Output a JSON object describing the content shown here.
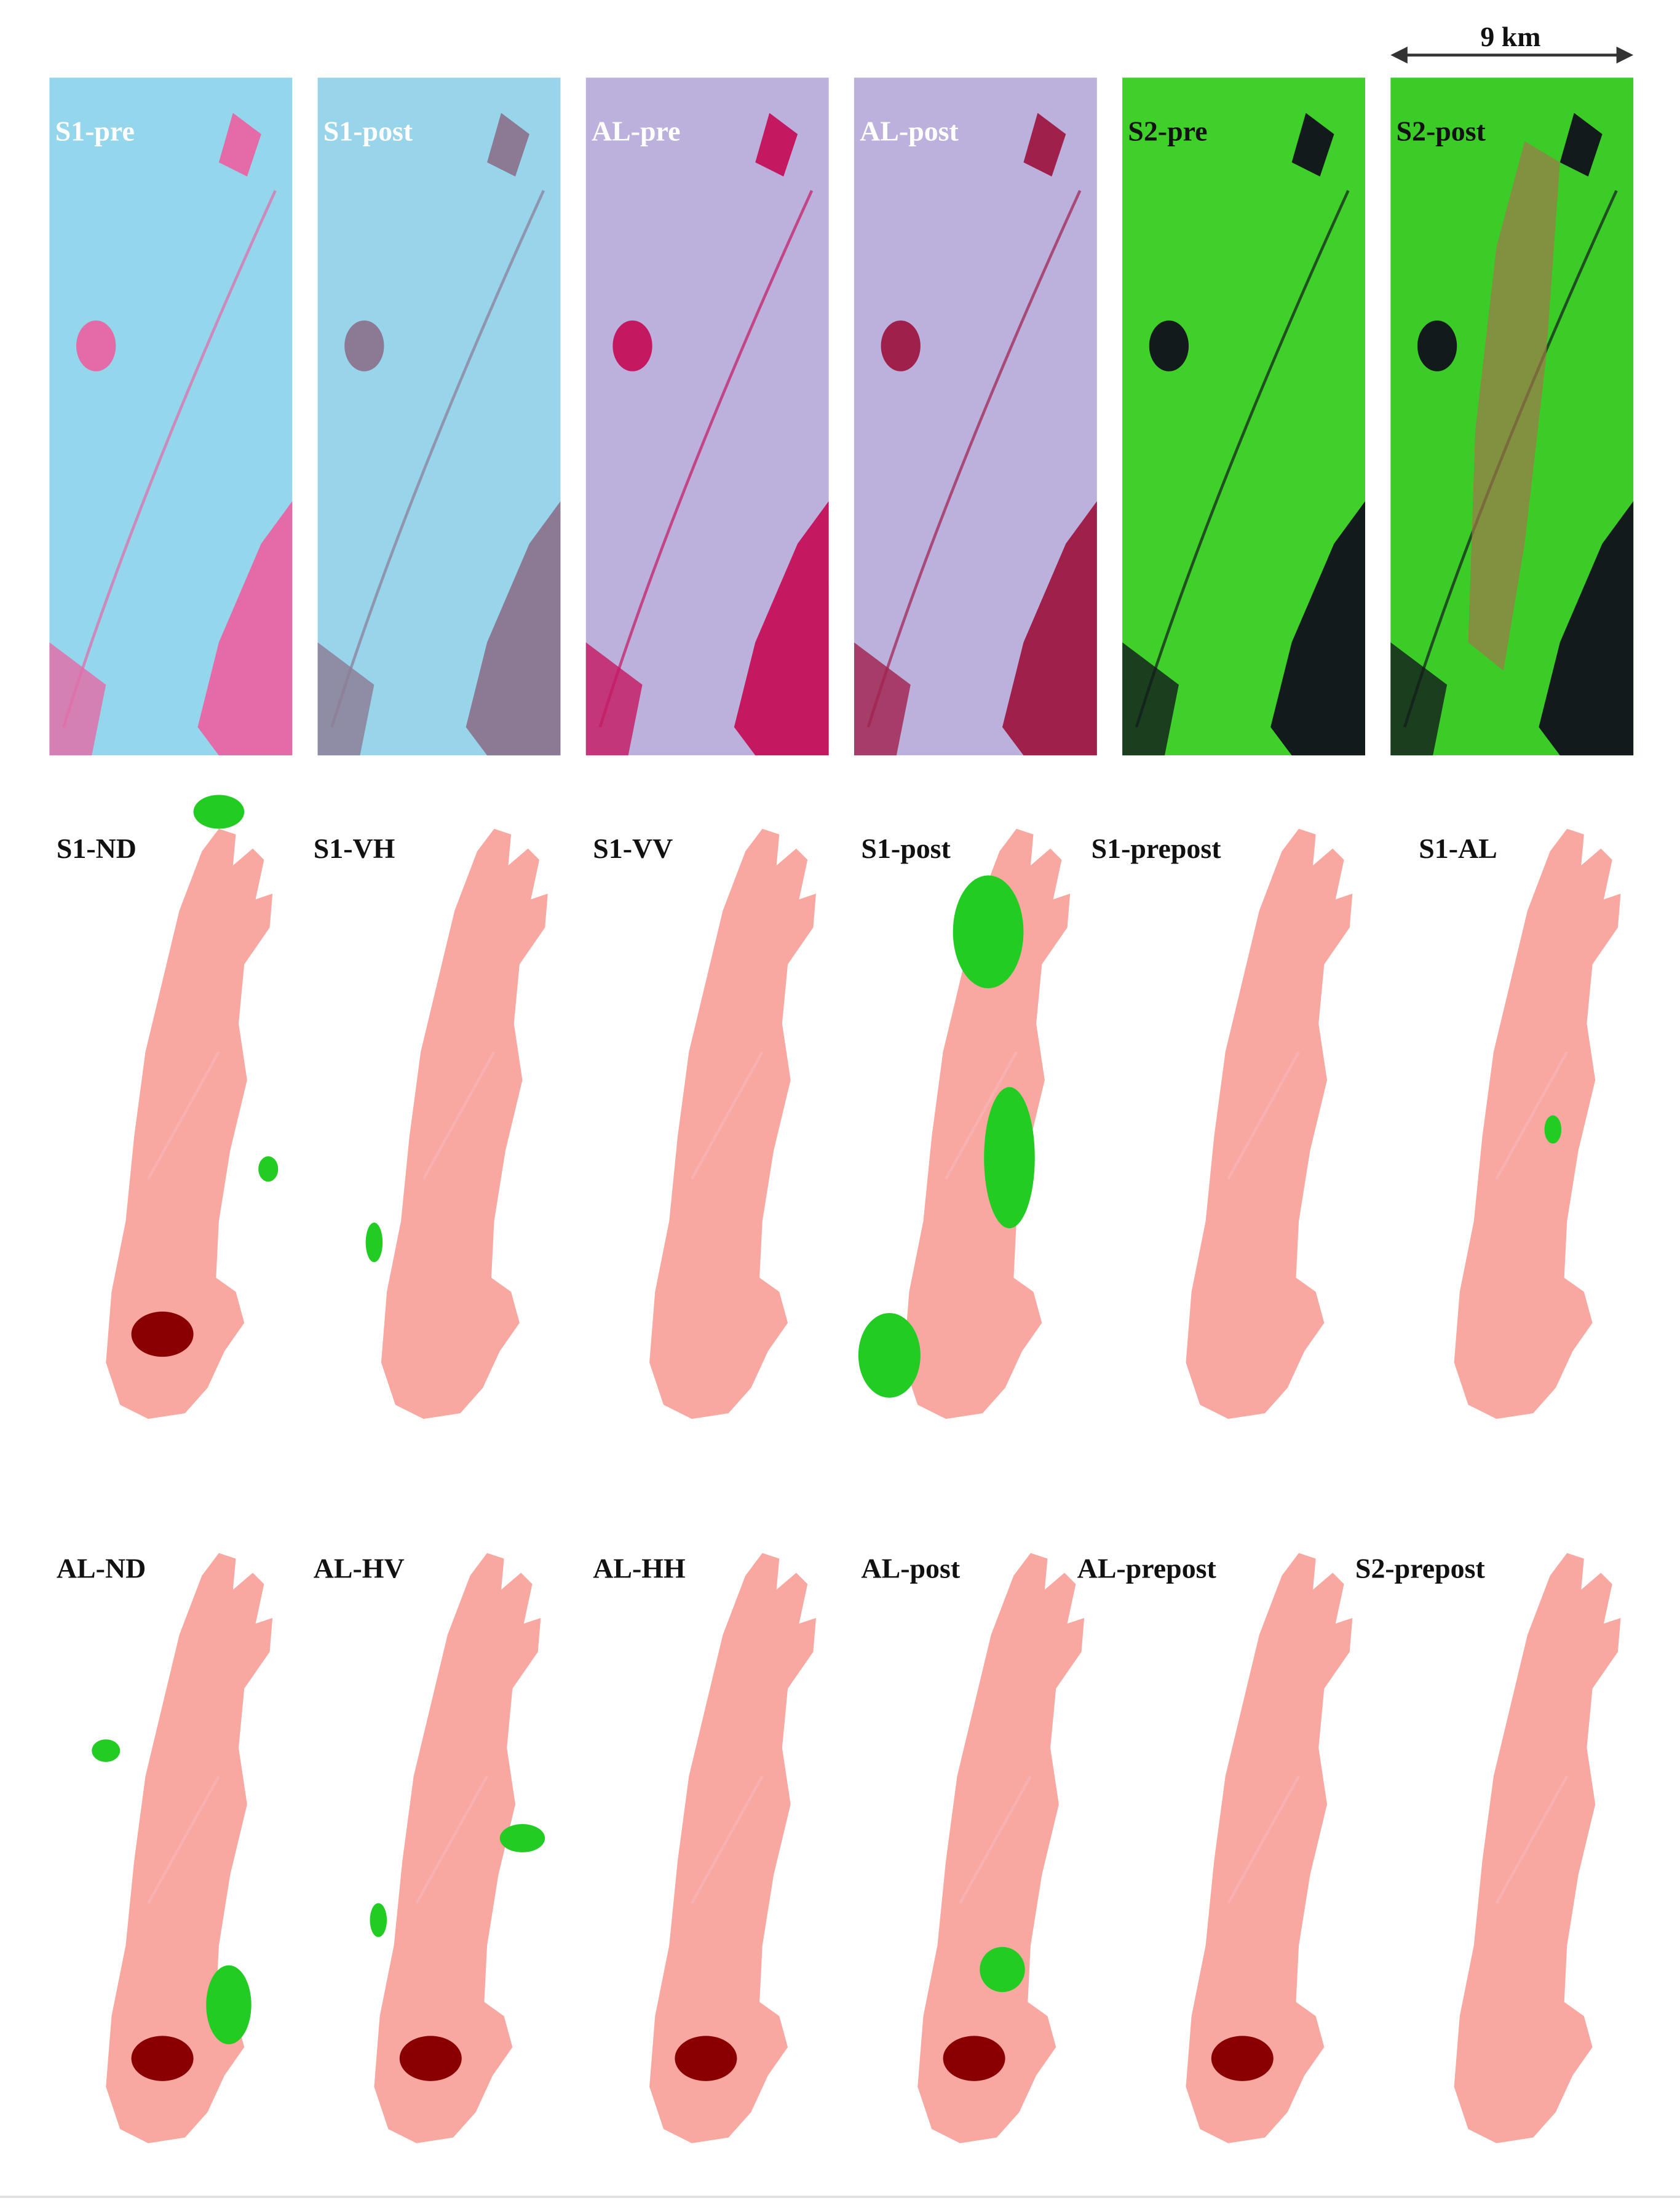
{
  "figure": {
    "scale_bar": "9 km",
    "top_row": [
      "S1-pre",
      "S1-post",
      "AL-pre",
      "AL-post",
      "S2-pre",
      "S2-post"
    ],
    "middle_row": [
      "S1-ND",
      "S1-VH",
      "S1-VV",
      "S1-post",
      "S1-prepost",
      "S1-AL"
    ],
    "bottom_row": [
      "AL-ND",
      "AL-HV",
      "AL-HH",
      "AL-post",
      "AL-prepost",
      "S2-prepost"
    ]
  }
}
